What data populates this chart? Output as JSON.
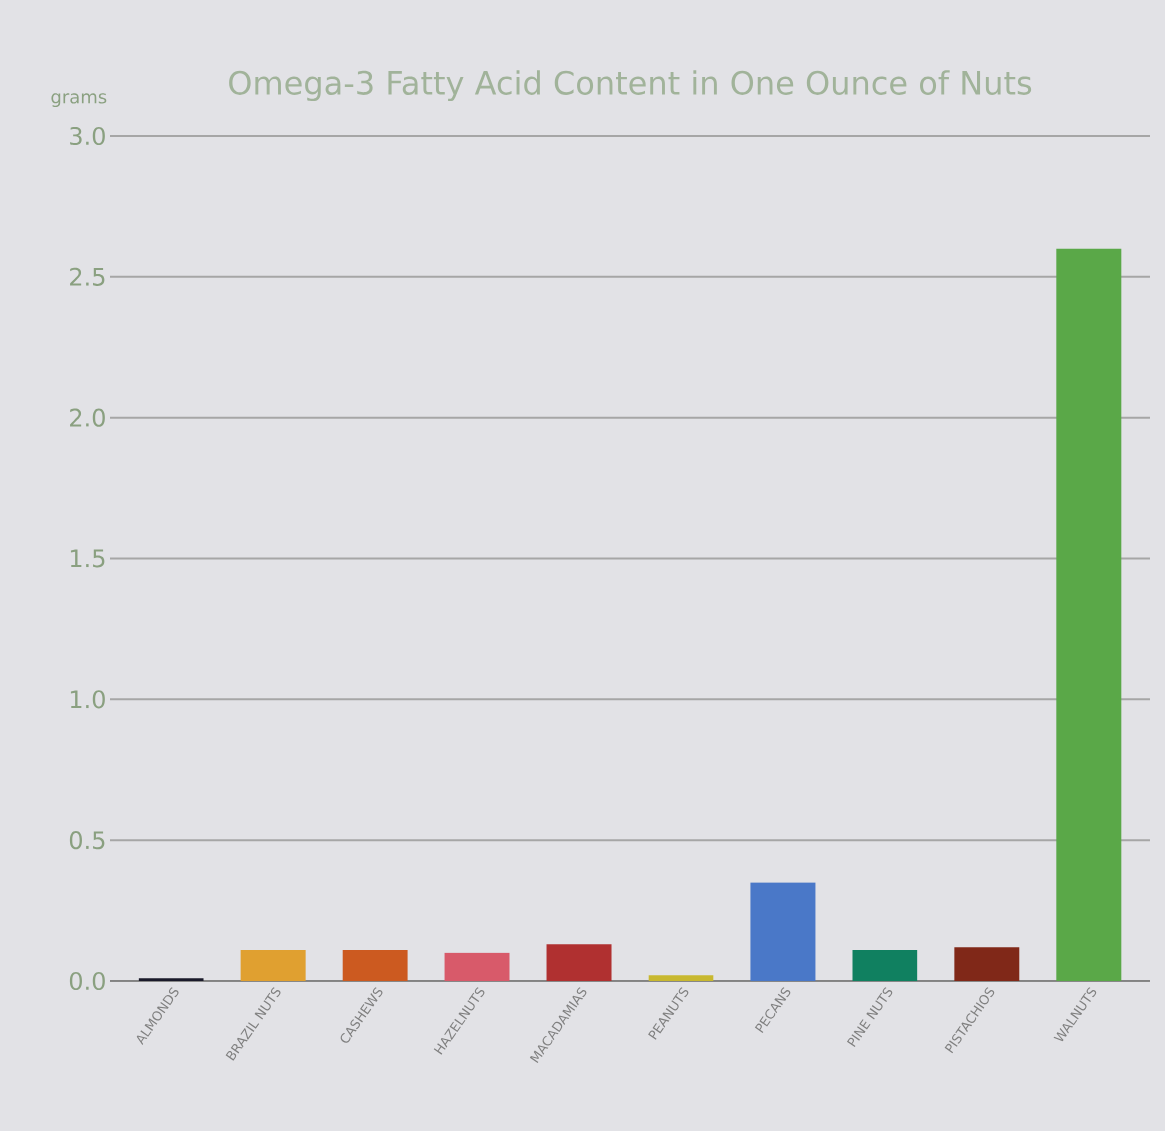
{
  "chart_data": {
    "type": "bar",
    "title": "Omega-3 Fatty Acid Content in One Ounce of Nuts",
    "ylabel": "grams",
    "categories": [
      "ALMONDS",
      "BRAZIL NUTS",
      "CASHEWS",
      "HAZELNUTS",
      "MACADAMIAS",
      "PEANUTS",
      "PECANS",
      "PINE NUTS",
      "PISTACHIOS",
      "WALNUTS"
    ],
    "values": [
      0.01,
      0.11,
      0.11,
      0.1,
      0.13,
      0.02,
      0.35,
      0.11,
      0.12,
      2.6
    ],
    "colors": [
      "#1a1a2a",
      "#e0a030",
      "#cc5a20",
      "#d85a6a",
      "#b03030",
      "#c8b830",
      "#4a78c8",
      "#108060",
      "#802818",
      "#5aa848"
    ],
    "ylim": [
      0,
      3
    ],
    "yticks": [
      {
        "value": 0,
        "label": "0.0"
      },
      {
        "value": 0.5,
        "label": "0.5"
      },
      {
        "value": 1,
        "label": "1.0"
      },
      {
        "value": 1.5,
        "label": "1.5"
      },
      {
        "value": 2,
        "label": "2.0"
      },
      {
        "value": 2.5,
        "label": "2.5"
      },
      {
        "value": 3,
        "label": "3.0"
      }
    ],
    "grid": "y"
  }
}
